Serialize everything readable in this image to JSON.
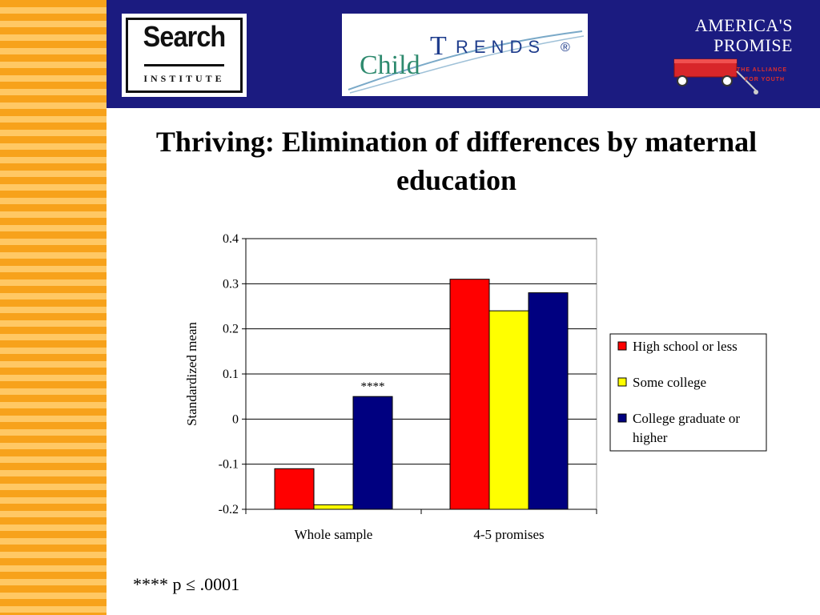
{
  "logos": {
    "search_institute": {
      "word": "Search",
      "sub": "INSTITUTE"
    },
    "child_trends": {
      "child": "Child",
      "t": "T",
      "rends": "RENDS",
      "registered": "®"
    },
    "americas_promise": {
      "line1": "AMERICA'S",
      "line2": "PROMISE",
      "tag1": "THE ALLIANCE",
      "tag2": "FOR YOUTH"
    }
  },
  "slide": {
    "title": "Thriving: Elimination of differences by maternal education",
    "footnote": "**** p ≤ .0001"
  },
  "colors": {
    "stripe_dark": "#F7A21B",
    "stripe_light": "#FFC864",
    "header_bg": "#1B1B80"
  },
  "chart_data": {
    "type": "bar",
    "title": "",
    "xlabel": "",
    "ylabel": "Standardized mean",
    "categories": [
      "Whole sample",
      "4-5 promises"
    ],
    "ylim": [
      -0.2,
      0.4
    ],
    "yticks": [
      0.4,
      0.3,
      0.2,
      0.1,
      0,
      -0.1,
      -0.2
    ],
    "ytick_labels": [
      "0.4",
      "0.3",
      "0.2",
      "0.1",
      "0",
      "-0.1",
      "-0.2"
    ],
    "grid": true,
    "legend": "right",
    "series": [
      {
        "name": "High school or less",
        "color": "#FF0000",
        "values": [
          -0.11,
          0.31
        ]
      },
      {
        "name": "Some college",
        "color": "#FFFF00",
        "values": [
          -0.19,
          0.24
        ]
      },
      {
        "name": "College graduate or higher",
        "color": "#000080",
        "values": [
          0.05,
          0.28
        ]
      }
    ],
    "annotations": [
      {
        "text": "****",
        "category": "Whole sample",
        "series": "College graduate or higher"
      }
    ]
  }
}
